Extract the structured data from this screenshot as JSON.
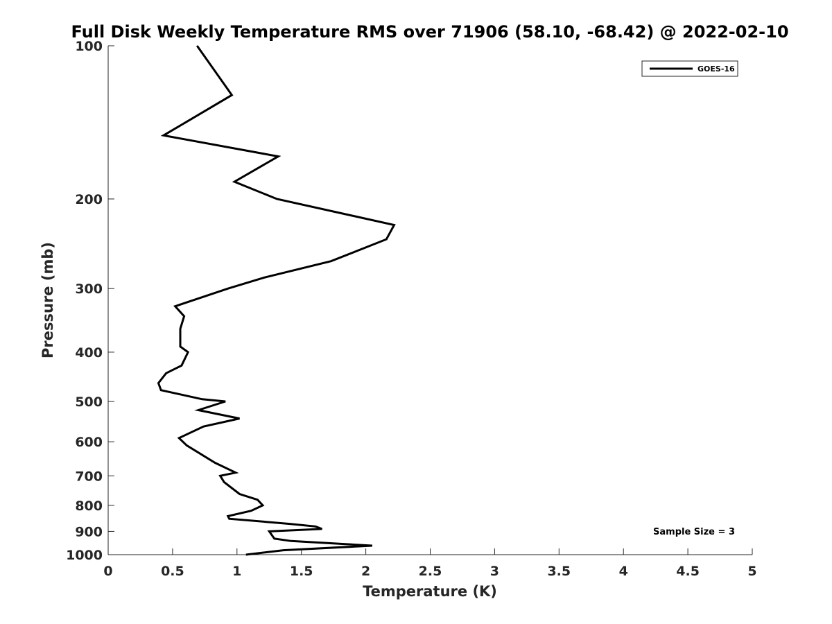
{
  "chart_data": {
    "type": "line",
    "title": "Full Disk Weekly Temperature RMS over 71906 (58.10, -68.42) @ 2022-02-10",
    "xlabel": "Temperature (K)",
    "ylabel": "Pressure (mb)",
    "xlim": [
      0,
      5
    ],
    "ylim": [
      100,
      1000
    ],
    "y_scale": "log",
    "y_reversed": true,
    "x_ticks": [
      0,
      0.5,
      1,
      1.5,
      2,
      2.5,
      3,
      3.5,
      4,
      4.5,
      5
    ],
    "x_tick_labels": [
      "0",
      "0.5",
      "1",
      "1.5",
      "2",
      "2.5",
      "3",
      "3.5",
      "4",
      "4.5",
      "5"
    ],
    "y_ticks": [
      100,
      200,
      300,
      400,
      500,
      600,
      700,
      800,
      900,
      1000
    ],
    "y_tick_labels": [
      "100",
      "200",
      "300",
      "400",
      "500",
      "600",
      "700",
      "800",
      "900",
      "1000"
    ],
    "grid": false,
    "legend_position": "top-right",
    "annotation": "Sample Size = 3",
    "series": [
      {
        "name": "GOES-16",
        "color": "#000000",
        "x": [
          0.69,
          0.96,
          0.43,
          1.32,
          0.98,
          1.31,
          2.22,
          2.16,
          1.73,
          1.22,
          0.93,
          0.52,
          0.59,
          0.56,
          0.56,
          0.62,
          0.57,
          0.45,
          0.39,
          0.41,
          0.73,
          0.91,
          0.7,
          1.02,
          0.74,
          0.55,
          0.61,
          0.83,
          0.99,
          0.87,
          0.9,
          1.02,
          1.16,
          1.2,
          1.11,
          0.93,
          0.94,
          1.41,
          1.61,
          1.66,
          1.25,
          1.29,
          1.42,
          2.05,
          1.36,
          1.07
        ],
        "y": [
          100,
          125,
          150,
          165,
          185,
          200,
          225,
          240,
          265,
          285,
          300,
          325,
          340,
          360,
          390,
          400,
          425,
          440,
          460,
          475,
          495,
          500,
          520,
          540,
          560,
          590,
          610,
          660,
          690,
          700,
          720,
          760,
          780,
          800,
          820,
          840,
          850,
          870,
          880,
          890,
          900,
          930,
          940,
          960,
          980,
          1000
        ]
      }
    ]
  }
}
